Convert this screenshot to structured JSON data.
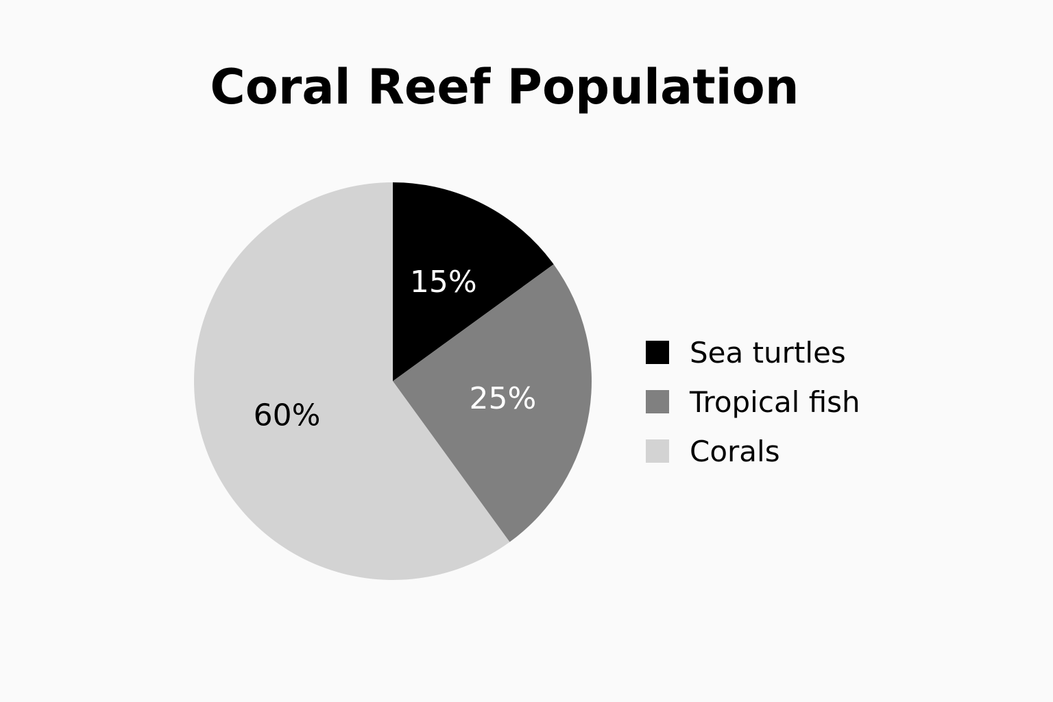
{
  "chart_data": {
    "type": "pie",
    "title": "Coral Reef Population",
    "slices": [
      {
        "name": "Sea turtles",
        "value": 15,
        "label": "15%",
        "color": "#000000",
        "label_color": "#ffffff"
      },
      {
        "name": "Tropical fish",
        "value": 25,
        "label": "25%",
        "color": "#808080",
        "label_color": "#ffffff"
      },
      {
        "name": "Corals",
        "value": 60,
        "label": "60%",
        "color": "#d3d3d3",
        "label_color": "#000000"
      }
    ],
    "legend_position": "right",
    "start": "top",
    "direction": "clockwise"
  }
}
